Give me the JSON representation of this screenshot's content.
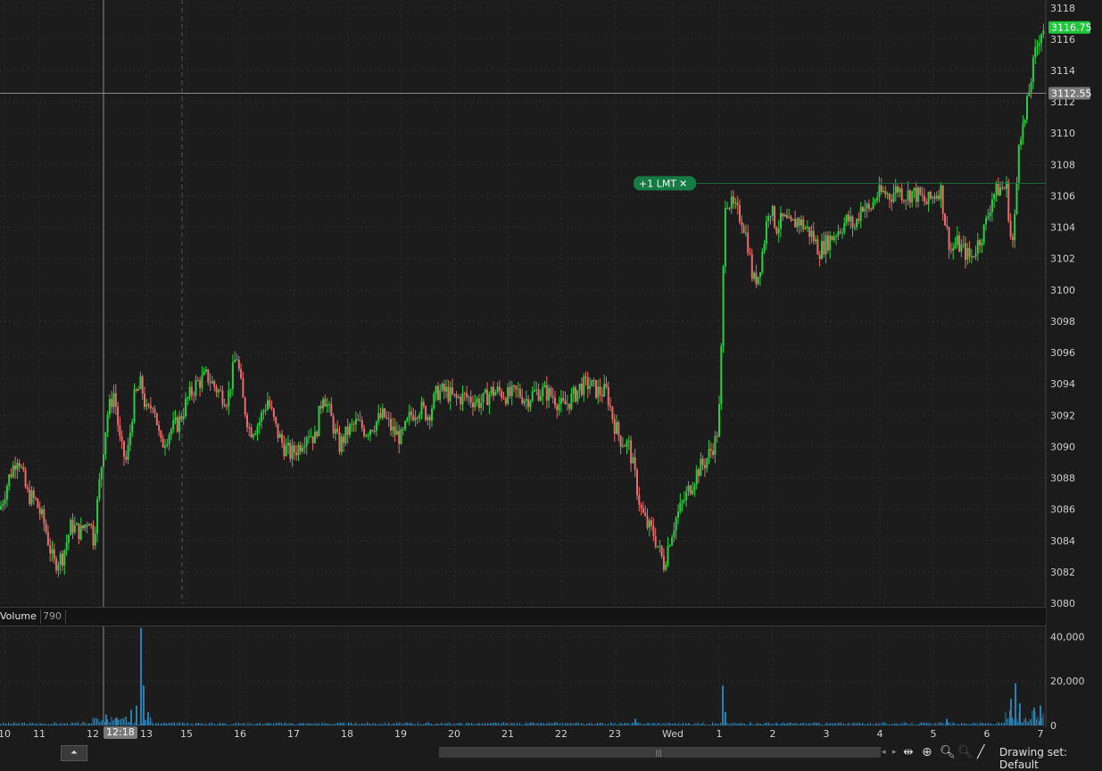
{
  "chart_data": {
    "type": "candlestick",
    "y_axis_ticks": [
      3080,
      3082,
      3084,
      3086,
      3088,
      3090,
      3092,
      3094,
      3096,
      3098,
      3100,
      3102,
      3104,
      3106,
      3108,
      3110,
      3112,
      3114,
      3116,
      3118
    ],
    "ylim": [
      3080,
      3118.5
    ],
    "x_axis_labels": [
      "10",
      "11",
      "12",
      "13",
      "15",
      "16",
      "17",
      "18",
      "19",
      "20",
      "21",
      "22",
      "23",
      "Wed",
      "1",
      "2",
      "3",
      "4",
      "5",
      "6",
      "7"
    ],
    "price_path": [
      [
        0,
        3086
      ],
      [
        10,
        3088
      ],
      [
        20,
        3089.5
      ],
      [
        30,
        3087
      ],
      [
        40,
        3086.5
      ],
      [
        50,
        3085
      ],
      [
        60,
        3082.5
      ],
      [
        70,
        3083
      ],
      [
        80,
        3085
      ],
      [
        90,
        3084.5
      ],
      [
        100,
        3085.5
      ],
      [
        105,
        3084
      ],
      [
        112,
        3088
      ],
      [
        120,
        3092
      ],
      [
        128,
        3093.5
      ],
      [
        135,
        3090
      ],
      [
        142,
        3089
      ],
      [
        150,
        3093
      ],
      [
        158,
        3094
      ],
      [
        165,
        3092
      ],
      [
        172,
        3093
      ],
      [
        180,
        3090
      ],
      [
        190,
        3091
      ],
      [
        200,
        3091.5
      ],
      [
        210,
        3093
      ],
      [
        220,
        3094
      ],
      [
        232,
        3094.5
      ],
      [
        245,
        3093.5
      ],
      [
        255,
        3093
      ],
      [
        265,
        3096
      ],
      [
        272,
        3093
      ],
      [
        280,
        3091
      ],
      [
        290,
        3091.5
      ],
      [
        300,
        3093
      ],
      [
        310,
        3091
      ],
      [
        318,
        3090
      ],
      [
        326,
        3089.5
      ],
      [
        335,
        3090
      ],
      [
        345,
        3091
      ],
      [
        353,
        3090.5
      ],
      [
        362,
        3093.5
      ],
      [
        370,
        3092
      ],
      [
        380,
        3090
      ],
      [
        390,
        3091
      ],
      [
        400,
        3091.5
      ],
      [
        410,
        3091
      ],
      [
        420,
        3091.5
      ],
      [
        430,
        3092
      ],
      [
        440,
        3091
      ],
      [
        450,
        3090.5
      ],
      [
        460,
        3092
      ],
      [
        470,
        3092.5
      ],
      [
        480,
        3092
      ],
      [
        490,
        3093.5
      ],
      [
        500,
        3093.5
      ],
      [
        510,
        3093
      ],
      [
        520,
        3093.2
      ],
      [
        530,
        3093
      ],
      [
        540,
        3092.8
      ],
      [
        550,
        3093.5
      ],
      [
        560,
        3093.5
      ],
      [
        570,
        3093.2
      ],
      [
        580,
        3093.5
      ],
      [
        590,
        3093
      ],
      [
        600,
        3093.5
      ],
      [
        610,
        3093.5
      ],
      [
        620,
        3093.2
      ],
      [
        630,
        3092.5
      ],
      [
        640,
        3093
      ],
      [
        650,
        3093.8
      ],
      [
        660,
        3094
      ],
      [
        670,
        3093.5
      ],
      [
        680,
        3093.5
      ],
      [
        688,
        3091.5
      ],
      [
        695,
        3090.5
      ],
      [
        705,
        3090
      ],
      [
        712,
        3088
      ],
      [
        718,
        3086
      ],
      [
        725,
        3085
      ],
      [
        732,
        3084.5
      ],
      [
        738,
        3083.5
      ],
      [
        744,
        3082.5
      ],
      [
        750,
        3084
      ],
      [
        758,
        3085.5
      ],
      [
        766,
        3086.5
      ],
      [
        774,
        3087.5
      ],
      [
        782,
        3088.5
      ],
      [
        790,
        3089
      ],
      [
        797,
        3089.8
      ],
      [
        803,
        3090.5
      ],
      [
        807,
        3093
      ],
      [
        810,
        3100
      ],
      [
        813,
        3106
      ],
      [
        818,
        3105.5
      ],
      [
        825,
        3105
      ],
      [
        832,
        3104.5
      ],
      [
        838,
        3103
      ],
      [
        844,
        3100.5
      ],
      [
        850,
        3101
      ],
      [
        856,
        3103
      ],
      [
        862,
        3105.5
      ],
      [
        870,
        3104
      ],
      [
        878,
        3104.5
      ],
      [
        886,
        3104
      ],
      [
        894,
        3104.5
      ],
      [
        902,
        3104
      ],
      [
        910,
        3103.5
      ],
      [
        918,
        3102.5
      ],
      [
        926,
        3103
      ],
      [
        934,
        3103.5
      ],
      [
        942,
        3104
      ],
      [
        950,
        3104.5
      ],
      [
        958,
        3104
      ],
      [
        966,
        3105.5
      ],
      [
        974,
        3105
      ],
      [
        982,
        3106
      ],
      [
        990,
        3106.2
      ],
      [
        998,
        3106
      ],
      [
        1006,
        3106.5
      ],
      [
        1014,
        3106
      ],
      [
        1022,
        3106.2
      ],
      [
        1030,
        3106
      ],
      [
        1038,
        3105.5
      ],
      [
        1046,
        3106
      ],
      [
        1054,
        3106.5
      ],
      [
        1060,
        3104
      ],
      [
        1066,
        3102.5
      ],
      [
        1072,
        3103
      ],
      [
        1080,
        3102.5
      ],
      [
        1088,
        3102
      ],
      [
        1096,
        3103
      ],
      [
        1104,
        3104
      ],
      [
        1112,
        3106
      ],
      [
        1120,
        3106.5
      ],
      [
        1128,
        3106.5
      ],
      [
        1134,
        3102.5
      ],
      [
        1138,
        3105
      ],
      [
        1142,
        3110
      ],
      [
        1148,
        3110.5
      ],
      [
        1154,
        3113
      ],
      [
        1160,
        3115
      ],
      [
        1166,
        3116.5
      ],
      [
        1170,
        3116.75
      ]
    ],
    "current_price": "3116.75",
    "crosshair_price": "3112.55",
    "order_label": "+1 LMT",
    "order_price": 3106.8,
    "volume": {
      "label": "Volume",
      "value": "790",
      "y_axis_ticks": [
        "40,000",
        "20,000",
        "0"
      ],
      "ylim": [
        0,
        45000
      ],
      "spikes": [
        {
          "x": 118,
          "v": 5000
        },
        {
          "x": 130,
          "v": 3500
        },
        {
          "x": 146,
          "v": 7000
        },
        {
          "x": 152,
          "v": 9000
        },
        {
          "x": 157,
          "v": 44000
        },
        {
          "x": 160,
          "v": 18000
        },
        {
          "x": 165,
          "v": 6000
        },
        {
          "x": 711,
          "v": 3000
        },
        {
          "x": 809,
          "v": 18000
        },
        {
          "x": 812,
          "v": 6000
        },
        {
          "x": 1060,
          "v": 3000
        },
        {
          "x": 1132,
          "v": 12000
        },
        {
          "x": 1137,
          "v": 19000
        },
        {
          "x": 1142,
          "v": 10000
        },
        {
          "x": 1158,
          "v": 8000
        },
        {
          "x": 1165,
          "v": 9000
        }
      ]
    },
    "crosshair_time": "12:18"
  },
  "toolbar": {
    "drawing_set": "Drawing set: Default",
    "collapse_icon": "chevron-up-bar-icon",
    "pan_icon": "pan-horizontal-icon",
    "crosshair_icon": "crosshair-icon",
    "zoom_in_icon": "zoom-in-icon",
    "zoom_out_icon": "zoom-out-icon",
    "drawing_icon": "pencil-line-icon"
  },
  "colors": {
    "up": "#2ecc40",
    "down": "#e96b6b",
    "volume": "#2a7fb0",
    "price_tag": "#1fc53a",
    "order_bg": "#157a43"
  }
}
